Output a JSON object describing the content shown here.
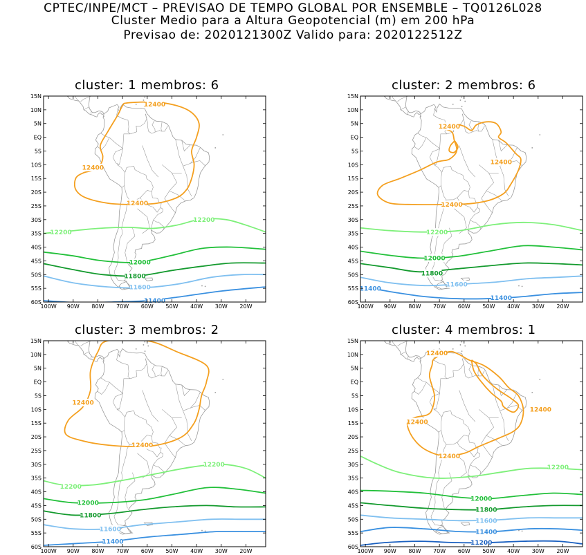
{
  "header": {
    "line1": "CPTEC/INPE/MCT – PREVISAO DE TEMPO GLOBAL POR ENSEMBLE – TQ0126L028",
    "line2": "Cluster Medio para a Altura Geopotencial (m) em 200 hPa",
    "line3": "Previsao de: 2020121300Z    Valido para: 2020122512Z"
  },
  "axes": {
    "lat_labels": [
      "15N",
      "10N",
      "5N",
      "EQ",
      "5S",
      "10S",
      "15S",
      "20S",
      "25S",
      "30S",
      "35S",
      "40S",
      "45S",
      "50S",
      "55S",
      "60S"
    ],
    "lon_labels": [
      "100W",
      "90W",
      "80W",
      "70W",
      "60W",
      "50W",
      "40W",
      "30W",
      "20W"
    ]
  },
  "colors": {
    "c12400": "#f4a020",
    "c12200": "#7ef07a",
    "c12000": "#22c03a",
    "c11800": "#149a2e",
    "c11600": "#80c0f0",
    "c11400": "#3a90e0",
    "c11200": "#1a60c0",
    "land": "#9a9a9a"
  },
  "panels": [
    {
      "title": "cluster: 1   membros: 6",
      "labels": [
        {
          "text": "12400",
          "lon": -57,
          "lat": 12,
          "color": "c12400"
        },
        {
          "text": "12400",
          "lon": -82,
          "lat": -11,
          "color": "c12400"
        },
        {
          "text": "12400",
          "lon": -64,
          "lat": -24,
          "color": "c12400"
        },
        {
          "text": "12200",
          "lon": -95,
          "lat": -34.5,
          "color": "c12200"
        },
        {
          "text": "12200",
          "lon": -37,
          "lat": -30,
          "color": "c12200"
        },
        {
          "text": "12000",
          "lon": -63,
          "lat": -45.5,
          "color": "c12000"
        },
        {
          "text": "11800",
          "lon": -65,
          "lat": -50.5,
          "color": "c11800"
        },
        {
          "text": "11600",
          "lon": -63,
          "lat": -54.5,
          "color": "c11600"
        },
        {
          "text": "11400",
          "lon": -57,
          "lat": -59.5,
          "color": "c11400"
        }
      ]
    },
    {
      "title": "cluster: 2   membros: 6",
      "labels": [
        {
          "text": "12400",
          "lon": -66,
          "lat": 4,
          "color": "c12400"
        },
        {
          "text": "12400",
          "lon": -45,
          "lat": -9,
          "color": "c12400"
        },
        {
          "text": "12400",
          "lon": -65,
          "lat": -24.5,
          "color": "c12400"
        },
        {
          "text": "12200",
          "lon": -71,
          "lat": -34.5,
          "color": "c12200"
        },
        {
          "text": "12000",
          "lon": -72,
          "lat": -44,
          "color": "c12000"
        },
        {
          "text": "11800",
          "lon": -73,
          "lat": -49.5,
          "color": "c11800"
        },
        {
          "text": "11600",
          "lon": -63,
          "lat": -53.5,
          "color": "c11600"
        },
        {
          "text": "11400",
          "lon": -98,
          "lat": -55,
          "color": "c11400"
        },
        {
          "text": "11400",
          "lon": -45,
          "lat": -58.5,
          "color": "c11400"
        }
      ]
    },
    {
      "title": "cluster: 3   membros: 2",
      "labels": [
        {
          "text": "12400",
          "lon": -86,
          "lat": -7.5,
          "color": "c12400"
        },
        {
          "text": "12400",
          "lon": -62,
          "lat": -23,
          "color": "c12400"
        },
        {
          "text": "12200",
          "lon": -91,
          "lat": -38,
          "color": "c12200"
        },
        {
          "text": "12200",
          "lon": -33,
          "lat": -30,
          "color": "c12200"
        },
        {
          "text": "12000",
          "lon": -84,
          "lat": -44,
          "color": "c12000"
        },
        {
          "text": "11800",
          "lon": -83,
          "lat": -48.5,
          "color": "c11800"
        },
        {
          "text": "11600",
          "lon": -75,
          "lat": -53.5,
          "color": "c11600"
        },
        {
          "text": "11400",
          "lon": -74,
          "lat": -58,
          "color": "c11400"
        }
      ]
    },
    {
      "title": "cluster: 4   membros: 1",
      "labels": [
        {
          "text": "12400",
          "lon": -71,
          "lat": 10.5,
          "color": "c12400"
        },
        {
          "text": "12400",
          "lon": -29,
          "lat": -10,
          "color": "c12400"
        },
        {
          "text": "12400",
          "lon": -79,
          "lat": -14.5,
          "color": "c12400"
        },
        {
          "text": "12400",
          "lon": -66,
          "lat": -27,
          "color": "c12400"
        },
        {
          "text": "12200",
          "lon": -22,
          "lat": -31,
          "color": "c12200"
        },
        {
          "text": "12000",
          "lon": -53,
          "lat": -42.5,
          "color": "c12000"
        },
        {
          "text": "11800",
          "lon": -51,
          "lat": -46.5,
          "color": "c11800"
        },
        {
          "text": "11600",
          "lon": -51,
          "lat": -50.5,
          "color": "c11600"
        },
        {
          "text": "11400",
          "lon": -51,
          "lat": -54.5,
          "color": "c11400"
        },
        {
          "text": "11200",
          "lon": -53,
          "lat": -58.5,
          "color": "c11200"
        }
      ]
    }
  ]
}
